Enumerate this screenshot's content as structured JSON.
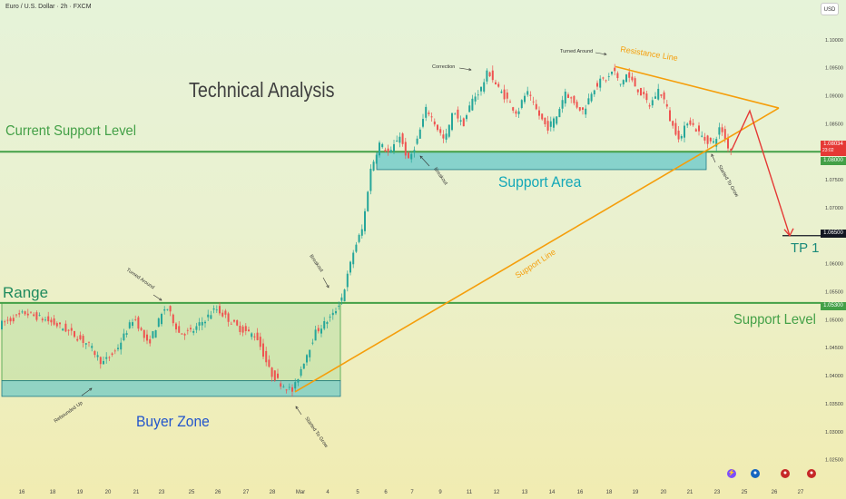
{
  "header": {
    "symbol_title": "Euro / U.S. Dollar · 2h · FXCM",
    "currency_button": "USD"
  },
  "annotations": {
    "title": "Technical Analysis",
    "current_support_level": "Current Support Level",
    "range": "Range",
    "support_level": "Support Level",
    "support_area": "Support Area",
    "buyer_zone": "Buyer Zone",
    "tp1": "TP 1",
    "resistance_line": "Resistance Line",
    "support_line": "Support Line",
    "correction": "Correction",
    "turned_around_top": "Turned Around",
    "turned_around_left": "Turned Around",
    "breakout_left": "Breakout",
    "breakout_right": "Breakout",
    "rebounded_up": "Rebounded Up",
    "started_to_grow_left": "Started To Grow",
    "started_to_grow_right": "Started To Grow"
  },
  "price_tags": {
    "current_price": "1.08034",
    "timer": "23:02",
    "support_current": "1.08000",
    "tp_level": "1.06500",
    "support_level": "1.05300"
  },
  "colors": {
    "bull": "#26a69a",
    "bear": "#ef5350",
    "support_line": "#43a047",
    "trend_line": "#f59e0b",
    "zone_fill": "#5ac8c8",
    "projection": "#e53935"
  },
  "chart_data": {
    "type": "candlestick",
    "symbol": "Euro / U.S. Dollar",
    "timeframe": "2h",
    "source": "FXCM",
    "y_ticks": [
      "1.02500",
      "1.03000",
      "1.03500",
      "1.04000",
      "1.04500",
      "1.05000",
      "1.05500",
      "1.06000",
      "1.06500",
      "1.07000",
      "1.07500",
      "1.08000",
      "1.08500",
      "1.09000",
      "1.09500",
      "1.10000"
    ],
    "ylim": [
      1.023,
      1.1045
    ],
    "x_ticks": [
      "16",
      "18",
      "19",
      "20",
      "21",
      "23",
      "25",
      "26",
      "27",
      "28",
      "Mar",
      "4",
      "5",
      "6",
      "7",
      "9",
      "11",
      "12",
      "13",
      "14",
      "16",
      "18",
      "19",
      "20",
      "21",
      "23",
      "25",
      "26",
      "27"
    ],
    "levels": {
      "current_support": 1.08,
      "support_level": 1.053,
      "take_profit": 1.065
    },
    "price_path": [
      [
        0,
        1.049
      ],
      [
        30,
        1.0512
      ],
      [
        55,
        1.0498
      ],
      [
        75,
        1.0482
      ],
      [
        100,
        1.0455
      ],
      [
        115,
        1.0422
      ],
      [
        130,
        1.0445
      ],
      [
        150,
        1.0505
      ],
      [
        165,
        1.0455
      ],
      [
        185,
        1.0525
      ],
      [
        200,
        1.0475
      ],
      [
        215,
        1.048
      ],
      [
        240,
        1.052
      ],
      [
        265,
        1.0485
      ],
      [
        285,
        1.047
      ],
      [
        300,
        1.0405
      ],
      [
        312,
        1.0385
      ],
      [
        325,
        1.0372
      ],
      [
        335,
        1.0418
      ],
      [
        350,
        1.0478
      ],
      [
        370,
        1.051
      ],
      [
        380,
        1.0545
      ],
      [
        392,
        1.0625
      ],
      [
        402,
        1.0665
      ],
      [
        410,
        1.0765
      ],
      [
        420,
        1.0815
      ],
      [
        432,
        1.0795
      ],
      [
        442,
        1.0832
      ],
      [
        452,
        1.0782
      ],
      [
        462,
        1.0822
      ],
      [
        472,
        1.0878
      ],
      [
        482,
        1.0848
      ],
      [
        492,
        1.0818
      ],
      [
        502,
        1.0875
      ],
      [
        512,
        1.0846
      ],
      [
        522,
        1.0892
      ],
      [
        532,
        1.0912
      ],
      [
        540,
        1.0945
      ],
      [
        550,
        1.0915
      ],
      [
        560,
        1.0895
      ],
      [
        572,
        1.0868
      ],
      [
        582,
        1.0908
      ],
      [
        595,
        1.0868
      ],
      [
        605,
        1.0842
      ],
      [
        615,
        1.0862
      ],
      [
        625,
        1.0908
      ],
      [
        635,
        1.0885
      ],
      [
        645,
        1.0872
      ],
      [
        655,
        1.0912
      ],
      [
        665,
        1.0928
      ],
      [
        672,
        1.093
      ],
      [
        678,
        1.0948
      ],
      [
        685,
        1.0918
      ],
      [
        692,
        1.0938
      ],
      [
        700,
        1.0922
      ],
      [
        710,
        1.09
      ],
      [
        718,
        1.0882
      ],
      [
        728,
        1.0912
      ],
      [
        735,
        1.0888
      ],
      [
        742,
        1.0848
      ],
      [
        752,
        1.0822
      ],
      [
        760,
        1.0858
      ],
      [
        770,
        1.0838
      ],
      [
        778,
        1.0822
      ],
      [
        788,
        1.0815
      ],
      [
        796,
        1.0845
      ],
      [
        802,
        1.0818
      ],
      [
        806,
        1.0803
      ]
    ],
    "zones": [
      {
        "name": "Range",
        "x": [
          0,
          375
        ],
        "y": [
          1.0391,
          1.053
        ]
      },
      {
        "name": "Buyer Zone",
        "x": [
          0,
          375
        ],
        "y": [
          1.0363,
          1.0391
        ]
      },
      {
        "name": "Support Area",
        "x": [
          413,
          778
        ],
        "y": [
          1.0768,
          1.08
        ]
      }
    ],
    "trend_lines": [
      {
        "name": "Support Line",
        "from": [
          325,
          1.0371
        ],
        "to": [
          858,
          1.0878
        ]
      },
      {
        "name": "Resistance Line",
        "from": [
          678,
          1.0952
        ],
        "to": [
          858,
          1.0878
        ]
      }
    ],
    "projection": [
      [
        806,
        1.0803
      ],
      [
        826,
        1.0873
      ],
      [
        870,
        1.065
      ]
    ]
  }
}
